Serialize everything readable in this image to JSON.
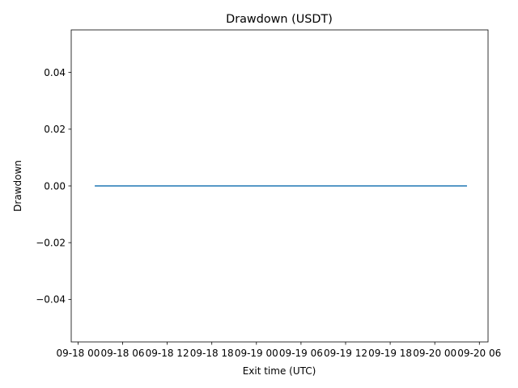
{
  "chart_data": {
    "type": "line",
    "title": "Drawdown (USDT)",
    "xlabel": "Exit time (UTC)",
    "ylabel": "Drawdown",
    "xlim": [
      "2025-09-17T23:05",
      "2025-09-20T07:10"
    ],
    "ylim": [
      -0.055,
      0.055
    ],
    "x_ticks": [
      "2025-09-18T00:00",
      "2025-09-18T06:00",
      "2025-09-18T12:00",
      "2025-09-18T18:00",
      "2025-09-19T00:00",
      "2025-09-19T06:00",
      "2025-09-19T12:00",
      "2025-09-19T18:00",
      "2025-09-20T00:00",
      "2025-09-20T06:00"
    ],
    "x_tick_labels": [
      "09-18 00",
      "09-18 06",
      "09-18 12",
      "09-18 18",
      "09-19 00",
      "09-19 06",
      "09-19 12",
      "09-19 18",
      "09-20 00",
      "09-20 06"
    ],
    "y_ticks": [
      -0.04,
      -0.02,
      0.0,
      0.02,
      0.04
    ],
    "y_tick_labels": [
      "−0.04",
      "−0.02",
      "0.00",
      "0.02",
      "0.04"
    ],
    "series": [
      {
        "color": "#1f77b4",
        "x": [
          "2025-09-18T02:15",
          "2025-09-20T04:20"
        ],
        "values": [
          0,
          0
        ]
      }
    ],
    "grid": false,
    "legend": "none"
  }
}
